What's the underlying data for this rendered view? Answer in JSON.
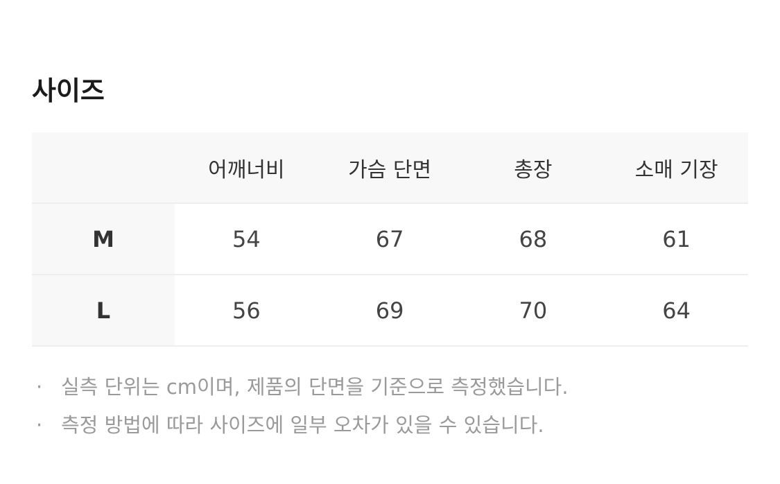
{
  "title": "사이즈",
  "table": {
    "headers": [
      "",
      "어깨너비",
      "가슴 단면",
      "총장",
      "소매 기장"
    ],
    "rows": [
      {
        "size": "M",
        "values": [
          "54",
          "67",
          "68",
          "61"
        ]
      },
      {
        "size": "L",
        "values": [
          "56",
          "69",
          "70",
          "64"
        ]
      }
    ]
  },
  "notes": [
    "실측 단위는 cm이며, 제품의 단면을 기준으로 측정했습니다.",
    "측정 방법에 따라 사이즈에 일부 오차가 있을 수 있습니다."
  ],
  "bullet": "·"
}
